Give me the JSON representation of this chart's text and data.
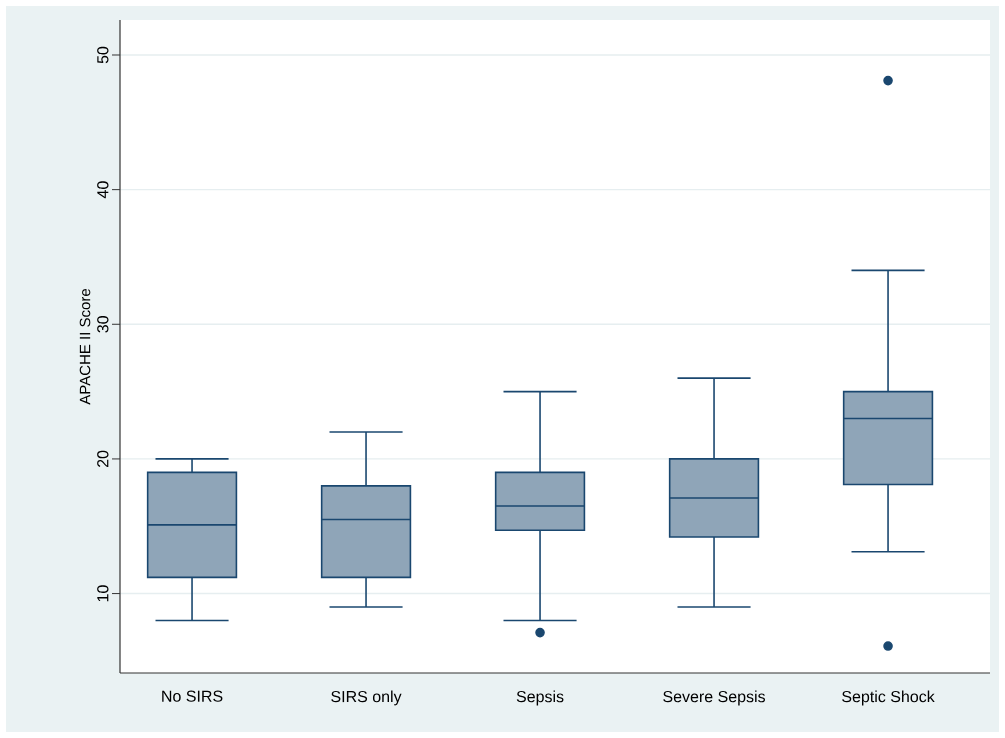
{
  "chart_data": {
    "type": "box",
    "ylabel": "APACHE II Score",
    "categories": [
      "No SIRS",
      "SIRS only",
      "Sepsis",
      "Severe Sepsis",
      "Septic Shock"
    ],
    "boxes": [
      {
        "low": 8,
        "q1": 11.2,
        "median": 15.1,
        "q3": 19,
        "high": 20
      },
      {
        "low": 9,
        "q1": 11.2,
        "median": 15.5,
        "q3": 18,
        "high": 22
      },
      {
        "low": 8,
        "q1": 14.7,
        "median": 16.5,
        "q3": 19,
        "high": 25,
        "outliers": [
          7.1
        ]
      },
      {
        "low": 9,
        "q1": 14.2,
        "median": 17.1,
        "q3": 20,
        "high": 26
      },
      {
        "low": 13.1,
        "q1": 18.1,
        "median": 23,
        "q3": 25,
        "high": 34,
        "outliers": [
          48.1,
          6.1
        ]
      }
    ],
    "color": "#8fa5b8",
    "ylim": [
      4.1,
      52.6
    ],
    "yticks": [
      10,
      20,
      30,
      40,
      50
    ],
    "grid": "y"
  }
}
